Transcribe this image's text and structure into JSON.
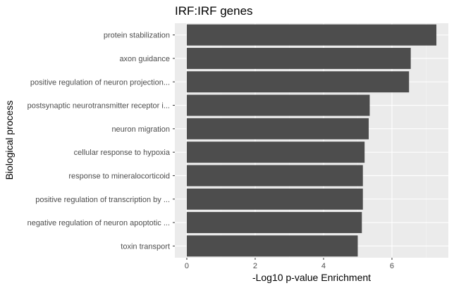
{
  "chart_data": {
    "type": "bar",
    "orientation": "horizontal",
    "title": "IRF:IRF genes",
    "xlabel": "-Log10 p-value Enrichment",
    "ylabel": "Biological process",
    "categories": [
      "protein stabilization",
      "axon guidance",
      "positive regulation of neuron projection...",
      "postsynaptic neurotransmitter receptor i...",
      "neuron migration",
      "cellular response to hypoxia",
      "response to mineralocorticoid",
      "positive regulation of transcription by ...",
      "negative regulation of neuron apoptotic ...",
      "toxin transport"
    ],
    "values": [
      7.3,
      6.55,
      6.5,
      5.35,
      5.32,
      5.2,
      5.15,
      5.15,
      5.12,
      5.0
    ],
    "xlim": [
      -0.35,
      7.65
    ],
    "xticks": [
      0,
      2,
      4,
      6
    ],
    "xtick_labels": [
      "0",
      "2",
      "4",
      "6"
    ],
    "grid": true,
    "colors": {
      "bar": "#4d4d4d",
      "panel": "#ebebeb",
      "grid_major": "#ffffff",
      "tick_text": "#4d4d4d",
      "tick_mark": "#333333"
    }
  }
}
